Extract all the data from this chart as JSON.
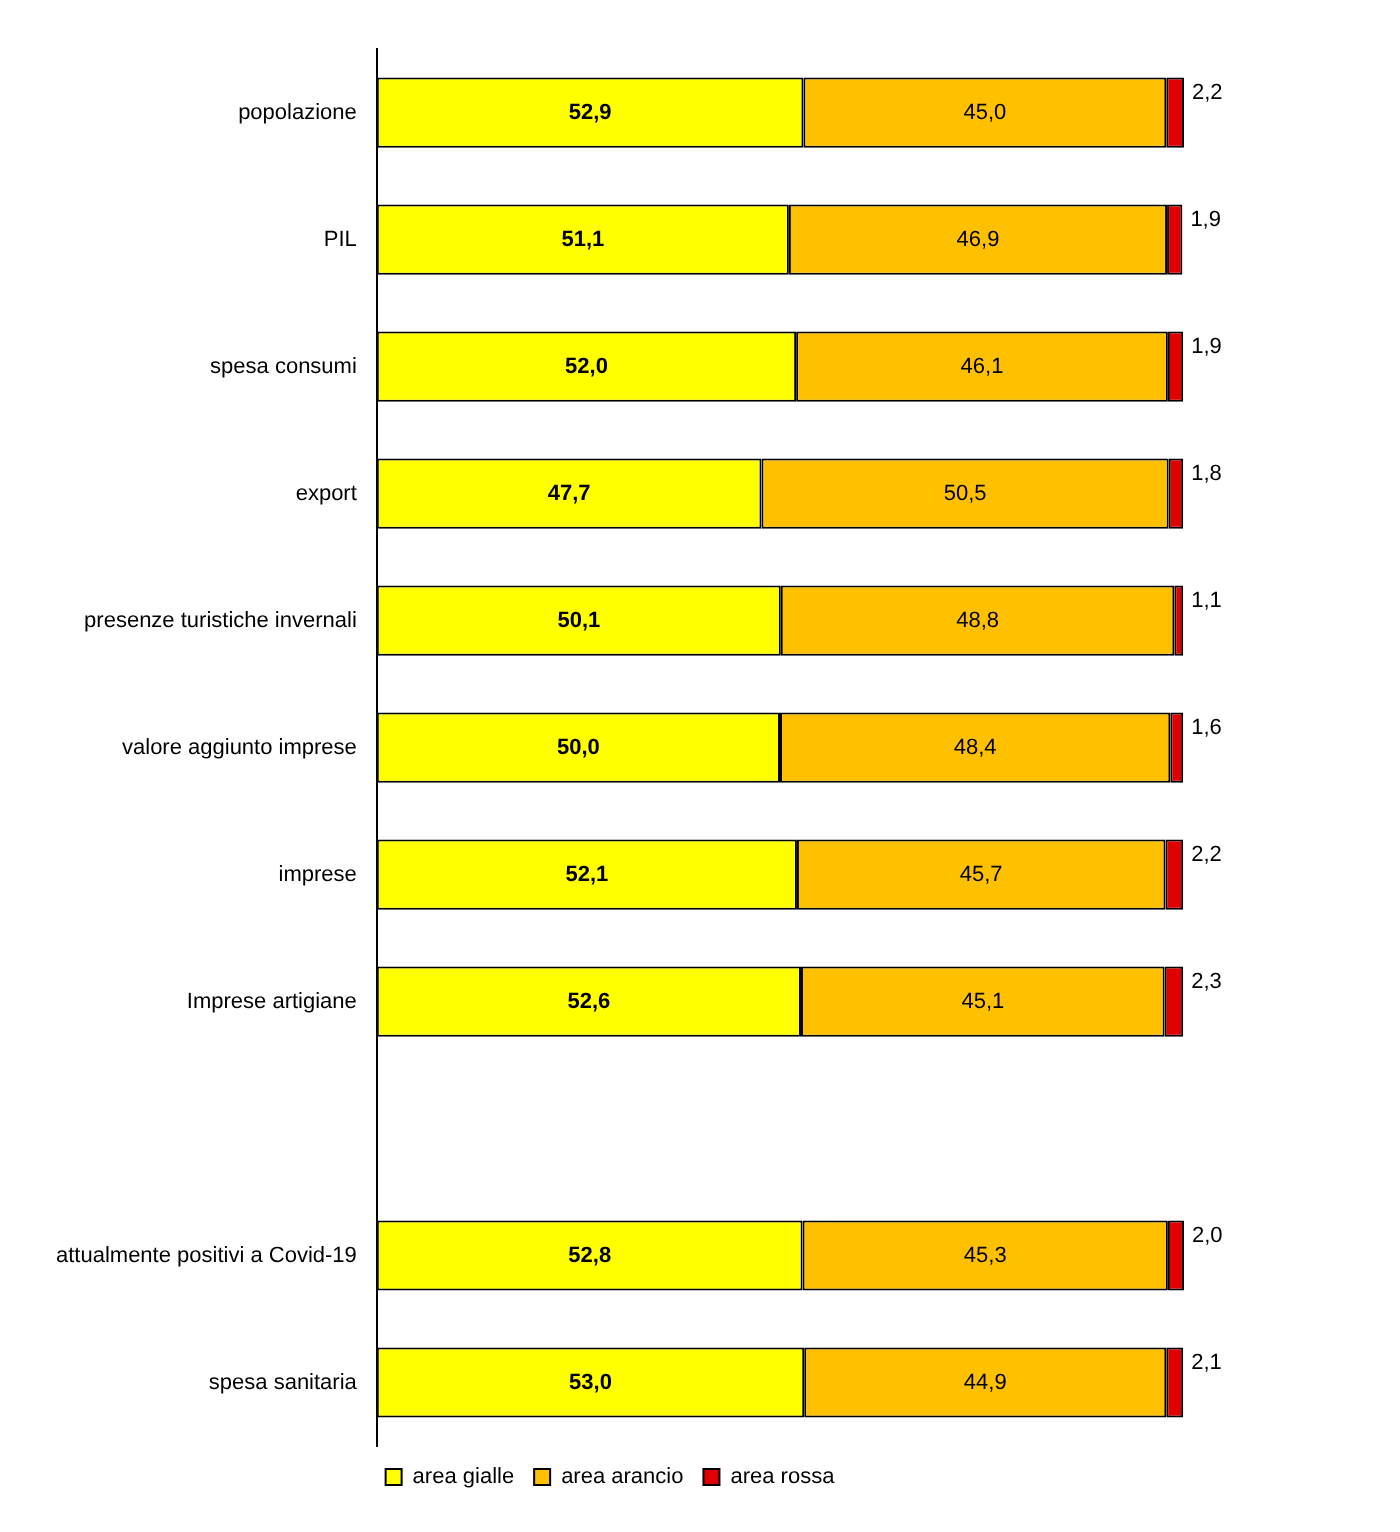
{
  "chart_data": {
    "type": "bar",
    "orientation": "horizontal",
    "stacked": true,
    "grid": false,
    "legend": "bottom",
    "categories": [
      "popolazione",
      "PIL",
      "spesa consumi",
      "export",
      "presenze turistiche invernali",
      "valore aggiunto imprese",
      "imprese",
      "Imprese artigiane",
      null,
      "attualmente positivi a Covid-19",
      "spesa sanitaria"
    ],
    "series": [
      {
        "name": "area gialle",
        "color": "#ffff00",
        "values": [
          52.9,
          51.1,
          52.0,
          47.7,
          50.1,
          50.0,
          52.1,
          52.6,
          null,
          52.8,
          53.0
        ],
        "value_labels": [
          "52,9",
          "51,1",
          "52,0",
          "47,7",
          "50,1",
          "50,0",
          "52,1",
          "52,6",
          null,
          "52,8",
          "53,0"
        ]
      },
      {
        "name": "area arancio",
        "color": "#ffc000",
        "values": [
          45.0,
          46.9,
          46.1,
          50.5,
          48.8,
          48.4,
          45.7,
          45.1,
          null,
          45.3,
          44.9
        ],
        "value_labels": [
          "45,0",
          "46,9",
          "46,1",
          "50,5",
          "48,8",
          "48,4",
          "45,7",
          "45,1",
          null,
          "45,3",
          "44,9"
        ]
      },
      {
        "name": "area rossa",
        "color": "#e00000",
        "values": [
          2.2,
          1.9,
          1.9,
          1.8,
          1.1,
          1.6,
          2.2,
          2.3,
          null,
          2.0,
          2.1
        ],
        "value_labels": [
          "2,2",
          "1,9",
          "1,9",
          "1,8",
          "1,1",
          "1,6",
          "2,2",
          "2,3",
          null,
          "2,0",
          "2,1"
        ]
      }
    ]
  }
}
